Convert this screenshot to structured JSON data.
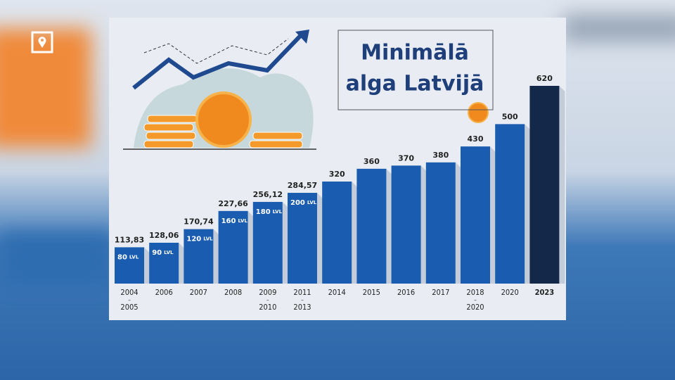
{
  "chart_data": {
    "type": "bar",
    "title": [
      "Minimālā",
      "alga Latvijā"
    ],
    "categories": [
      "2004–2005",
      "2006",
      "2007",
      "2008",
      "2009–2010",
      "2011–2013",
      "2014",
      "2015",
      "2016",
      "2017",
      "2018–2020",
      "2020",
      "2023"
    ],
    "values": [
      113.83,
      128.06,
      170.74,
      227.66,
      256.12,
      284.57,
      320,
      360,
      370,
      380,
      430,
      500,
      620
    ],
    "value_labels": [
      "113,83",
      "128,06",
      "170,74",
      "227,66",
      "256,12",
      "284,57",
      "320",
      "360",
      "370",
      "380",
      "430",
      "500",
      "620"
    ],
    "lvl_values": [
      80,
      90,
      120,
      160,
      180,
      200,
      null,
      null,
      null,
      null,
      null,
      null,
      null
    ],
    "lvl_unit": "LVL",
    "colors": [
      "#1a5db0",
      "#1a5db0",
      "#1a5db0",
      "#1a5db0",
      "#1a5db0",
      "#1a5db0",
      "#1a5db0",
      "#1a5db0",
      "#1a5db0",
      "#1a5db0",
      "#1a5db0",
      "#1a5db0",
      "#14284a"
    ]
  }
}
